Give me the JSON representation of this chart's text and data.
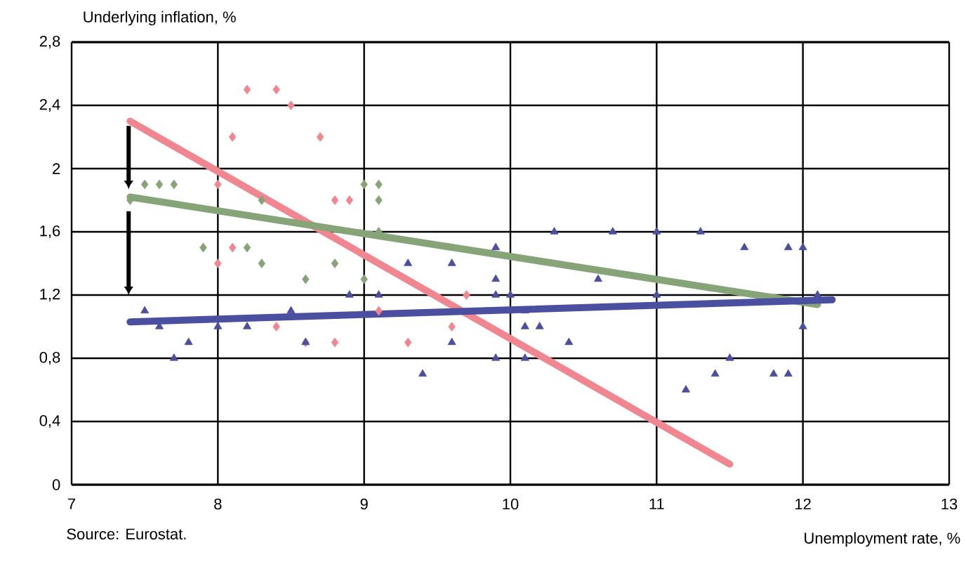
{
  "chart_data": {
    "type": "scatter",
    "xlabel": "Unemployment rate, %",
    "ylabel": "Underlying inflation, %",
    "annotations": [
      "Source: Eurostat."
    ],
    "xlim": [
      7,
      13
    ],
    "xticks": [
      7,
      8,
      9,
      10,
      11,
      12,
      13
    ],
    "ylim": [
      0,
      2.8
    ],
    "yticks": [
      0,
      {
        "value": 0.4,
        "label": "0,4"
      },
      {
        "value": 0.8,
        "label": "0,8"
      },
      {
        "value": 1.2,
        "label": "1,2"
      },
      {
        "value": 1.6,
        "label": "1,6"
      },
      2,
      {
        "value": 2.4,
        "label": "2,4"
      },
      {
        "value": 2.8,
        "label": "2,8"
      }
    ],
    "grid": true,
    "series": [
      {
        "type": "scatter",
        "marker": "diamond",
        "color": "#86a477",
        "x": [
          7.4,
          7.5,
          7.6,
          7.7,
          8.3,
          7.9,
          8.2,
          8.3,
          8.8,
          8.6,
          9.0,
          9.0,
          9.1,
          9.1,
          9.1
        ],
        "values": [
          1.8,
          1.9,
          1.9,
          1.9,
          1.8,
          1.5,
          1.5,
          1.4,
          1.4,
          1.3,
          1.3,
          1.9,
          1.9,
          1.8,
          1.6
        ]
      },
      {
        "type": "scatter",
        "marker": "diamond",
        "color": "#f0868f",
        "x": [
          8.2,
          8.4,
          8.5,
          8.1,
          8.7,
          8.0,
          8.8,
          8.9,
          8.1,
          8.0,
          8.4,
          8.6,
          8.8,
          9.1,
          9.7,
          9.6,
          9.3
        ],
        "values": [
          2.5,
          2.5,
          2.4,
          2.2,
          2.2,
          1.9,
          1.8,
          1.8,
          1.5,
          1.4,
          1.0,
          0.9,
          0.9,
          1.1,
          1.2,
          1.0,
          0.9
        ]
      },
      {
        "type": "scatter",
        "marker": "triangle",
        "color": "#4b4fa0",
        "x": [
          7.5,
          7.6,
          7.7,
          7.8,
          8.0,
          8.2,
          8.5,
          8.6,
          8.9,
          9.1,
          9.3,
          9.6,
          9.9,
          9.9,
          9.9,
          10.0,
          10.0,
          10.1,
          10.1,
          10.2,
          10.4,
          9.6,
          9.9,
          10.1,
          9.4,
          10.3,
          10.7,
          11.0,
          10.6,
          11.0,
          11.3,
          11.6,
          11.9,
          12.0,
          12.1,
          12.0,
          11.5,
          11.4,
          11.8,
          11.9,
          11.2
        ],
        "values": [
          1.1,
          1.0,
          0.8,
          0.9,
          1.0,
          1.0,
          1.1,
          0.9,
          1.2,
          1.2,
          1.4,
          1.4,
          1.5,
          1.3,
          1.2,
          1.2,
          1.1,
          1.1,
          1.0,
          1.0,
          0.9,
          0.9,
          0.8,
          0.8,
          0.7,
          1.6,
          1.6,
          1.6,
          1.3,
          1.2,
          1.6,
          1.5,
          1.5,
          1.5,
          1.2,
          1.0,
          0.8,
          0.7,
          0.7,
          0.7,
          0.6
        ]
      },
      {
        "type": "line",
        "marker": "none",
        "color": "#f0868f",
        "x": [
          7.4,
          11.5
        ],
        "values": [
          2.3,
          0.13
        ]
      },
      {
        "type": "line",
        "marker": "none",
        "color": "#86a477",
        "x": [
          7.4,
          12.1
        ],
        "values": [
          1.82,
          1.14
        ]
      },
      {
        "type": "line",
        "marker": "none",
        "color": "#4b4fa0",
        "x": [
          7.4,
          12.2
        ],
        "values": [
          1.03,
          1.17
        ]
      }
    ]
  }
}
